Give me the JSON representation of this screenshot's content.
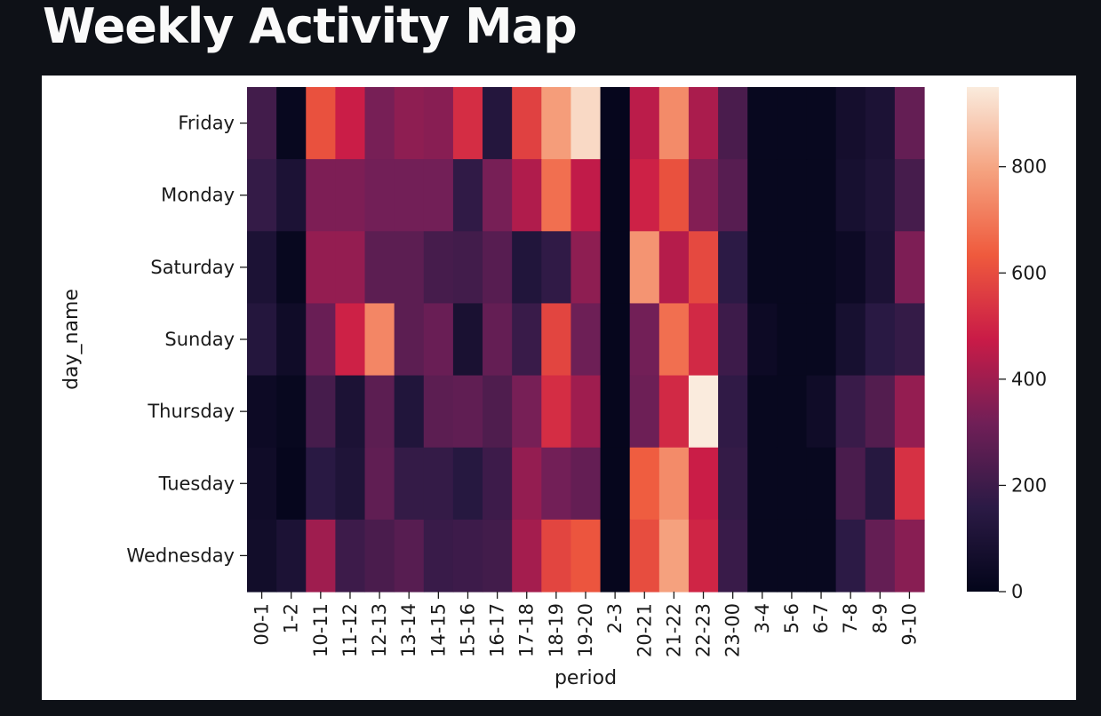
{
  "page": {
    "title": "Weekly Activity Map"
  },
  "colors": {
    "background": "#0e1117",
    "title_text": "#fafafa",
    "panel": "#ffffff",
    "colormap": [
      "#03051a",
      "#2b1a45",
      "#701f57",
      "#c91b47",
      "#ef5a3d",
      "#f5a27f",
      "#faebdd"
    ]
  },
  "chart_data": {
    "type": "heatmap",
    "colormap": "rocket",
    "xlabel": "period",
    "ylabel": "day_name",
    "x": [
      "00-1",
      "1-2",
      "10-11",
      "11-12",
      "12-13",
      "13-14",
      "14-15",
      "15-16",
      "16-17",
      "17-18",
      "18-19",
      "19-20",
      "2-3",
      "20-21",
      "21-22",
      "22-23",
      "23-00",
      "3-4",
      "5-6",
      "6-7",
      "7-8",
      "8-9",
      "9-10"
    ],
    "y": [
      "Friday",
      "Monday",
      "Saturday",
      "Sunday",
      "Thursday",
      "Tuesday",
      "Wednesday"
    ],
    "values": [
      [
        210,
        20,
        610,
        480,
        330,
        370,
        360,
        520,
        130,
        570,
        780,
        910,
        10,
        450,
        740,
        420,
        230,
        20,
        20,
        20,
        70,
        100,
        290
      ],
      [
        180,
        100,
        340,
        340,
        320,
        320,
        320,
        170,
        330,
        430,
        680,
        460,
        10,
        490,
        610,
        350,
        260,
        20,
        20,
        20,
        80,
        110,
        220
      ],
      [
        100,
        20,
        380,
        380,
        270,
        270,
        220,
        210,
        260,
        120,
        170,
        370,
        10,
        760,
        440,
        590,
        160,
        20,
        20,
        20,
        40,
        100,
        340
      ],
      [
        130,
        50,
        300,
        490,
        730,
        270,
        300,
        90,
        290,
        190,
        580,
        310,
        10,
        320,
        680,
        510,
        200,
        40,
        20,
        20,
        80,
        150,
        180
      ],
      [
        40,
        20,
        220,
        100,
        270,
        120,
        270,
        280,
        240,
        330,
        520,
        400,
        10,
        310,
        510,
        950,
        170,
        20,
        20,
        50,
        190,
        250,
        380
      ],
      [
        50,
        10,
        150,
        110,
        280,
        180,
        180,
        140,
        200,
        380,
        320,
        290,
        10,
        640,
        740,
        480,
        180,
        20,
        20,
        20,
        230,
        140,
        530
      ],
      [
        60,
        100,
        400,
        200,
        230,
        260,
        190,
        200,
        210,
        410,
        580,
        620,
        10,
        600,
        790,
        500,
        190,
        20,
        20,
        20,
        160,
        290,
        360
      ]
    ],
    "vmin": 0,
    "vmax": 950,
    "colorbar": {
      "ticks": [
        0,
        200,
        400,
        600,
        800
      ]
    }
  }
}
